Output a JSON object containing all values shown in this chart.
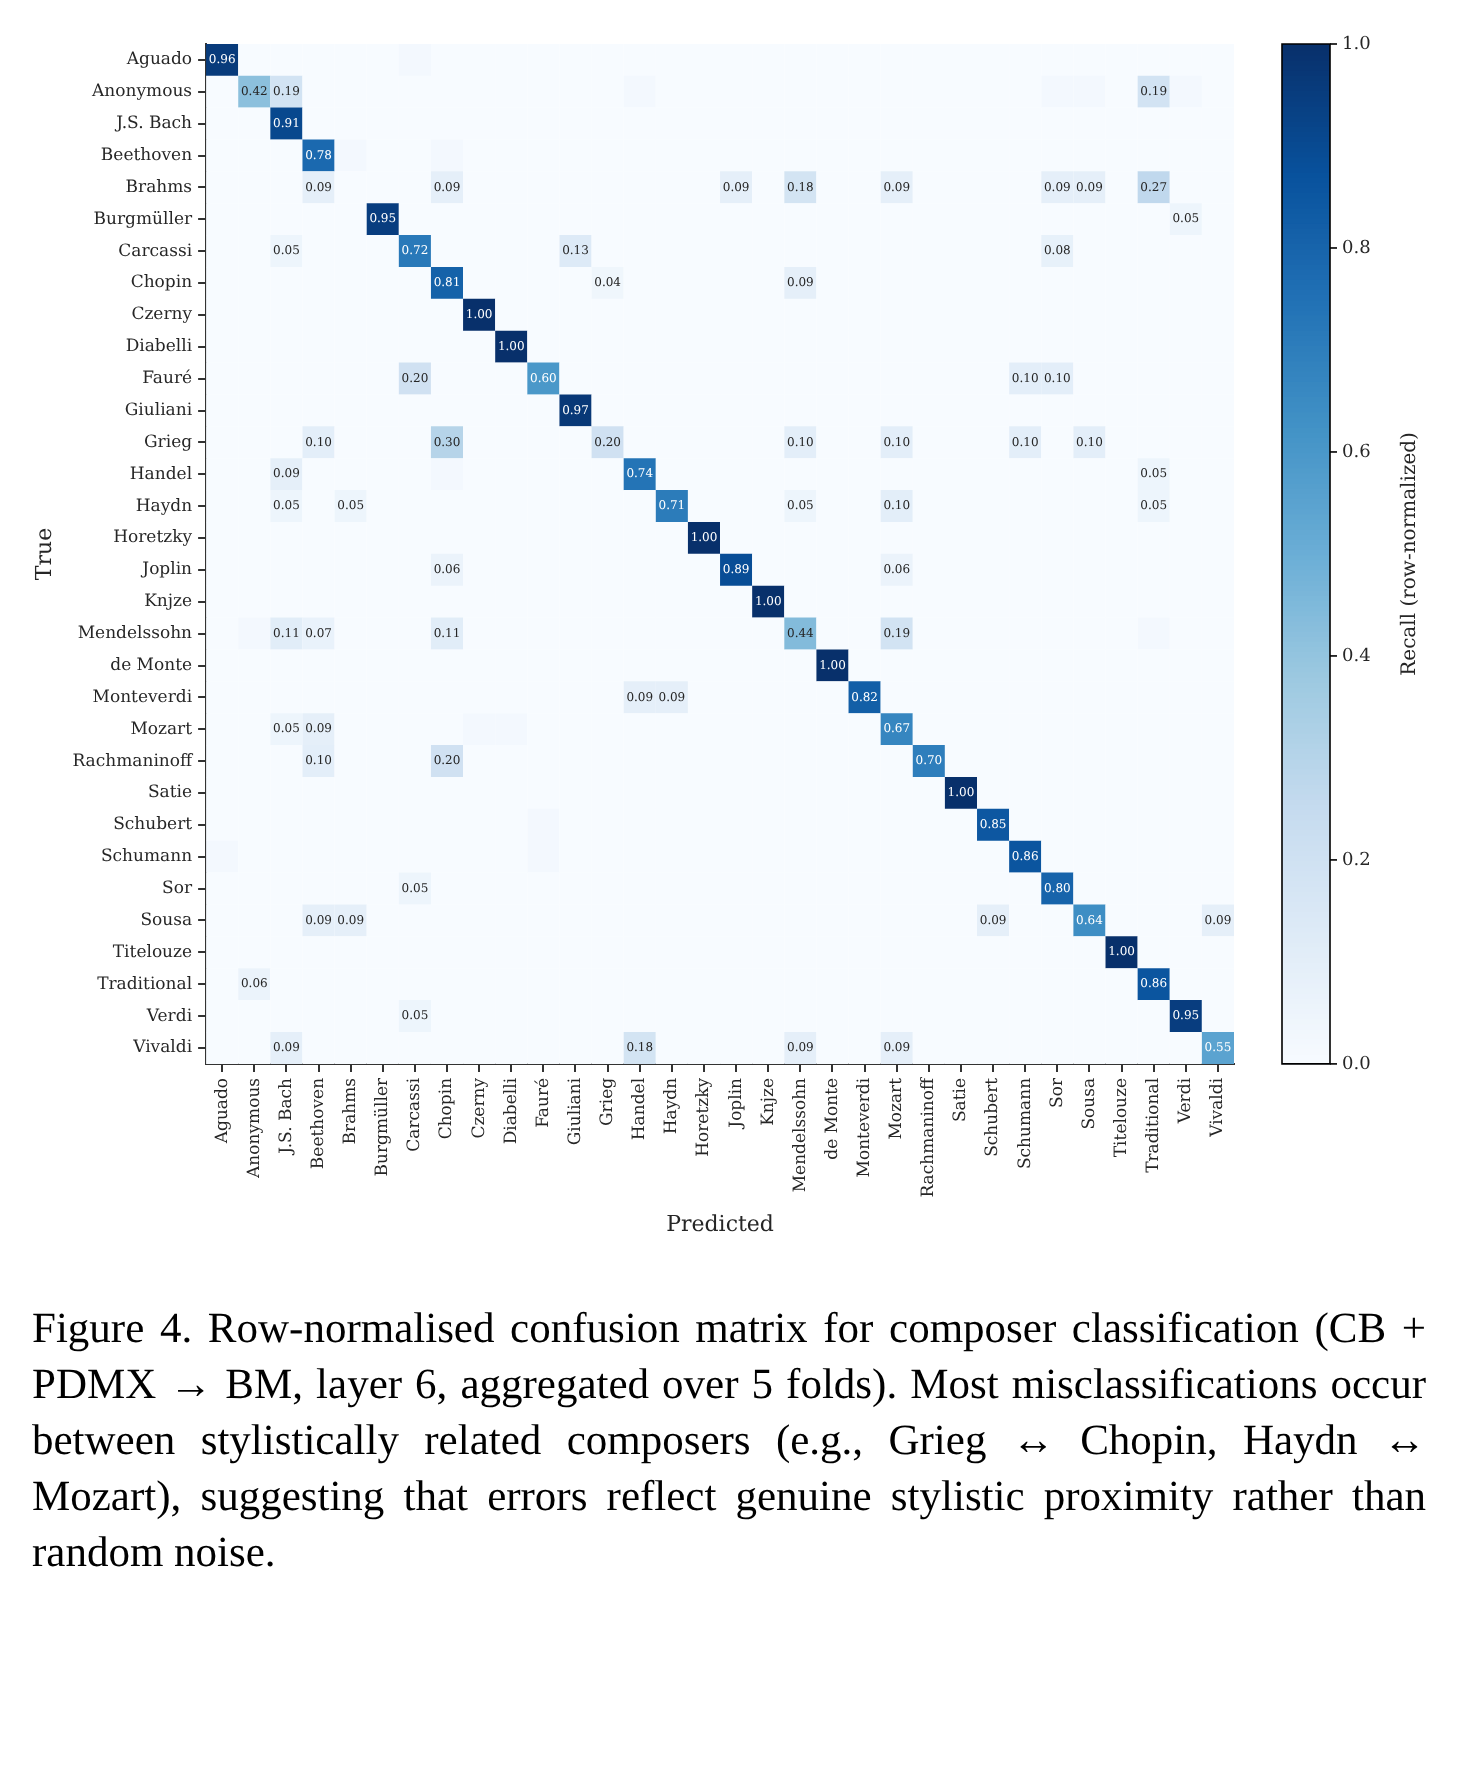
{
  "chart_data": {
    "type": "heatmap",
    "xlabel": "Predicted",
    "ylabel": "True",
    "clabel": "Recall (row-normalized)",
    "annotations": [
      "Figure 4.  Row-normalised confusion matrix for composer classification (CB + PDMX → BM, layer 6, aggregated over 5 folds). Most misclassifications occur between stylistically related composers (e.g., Grieg ↔ Chopin, Haydn ↔ Mozart), suggesting that errors reflect genuine stylistic proximity rather than random noise."
    ],
    "categories": [
      "Aguado",
      "Anonymous",
      "J.S. Bach",
      "Beethoven",
      "Brahms",
      "Burgmüller",
      "Carcassi",
      "Chopin",
      "Czerny",
      "Diabelli",
      "Fauré",
      "Giuliani",
      "Grieg",
      "Handel",
      "Haydn",
      "Horetzky",
      "Joplin",
      "Knjze",
      "Mendelssohn",
      "de Monte",
      "Monteverdi",
      "Mozart",
      "Rachmaninoff",
      "Satie",
      "Schubert",
      "Schumann",
      "Sor",
      "Sousa",
      "Titelouze",
      "Traditional",
      "Verdi",
      "Vivaldi"
    ],
    "y_categories": [
      "Aguado",
      "Anonymous",
      "J.S. Bach",
      "Beethoven",
      "Brahms",
      "Burgmüller",
      "Carcassi",
      "Chopin",
      "Czerny",
      "Diabelli",
      "Fauré",
      "Giuliani",
      "Grieg",
      "Handel",
      "Haydn",
      "Horetzky",
      "Joplin",
      "Knjze",
      "Mendelssohn",
      "de Monte",
      "Monteverdi",
      "Mozart",
      "Rachmaninoff",
      "Satie",
      "Schubert",
      "Schumann",
      "Sor",
      "Sousa",
      "Titelouze",
      "Traditional",
      "Verdi",
      "Vivaldi"
    ],
    "clim": [
      0,
      1
    ],
    "cticks": [
      {
        "value": 0,
        "label": "0.0"
      },
      {
        "value": 0.2,
        "label": "0.2"
      },
      {
        "value": 0.4,
        "label": "0.4"
      },
      {
        "value": 0.6,
        "label": "0.6"
      },
      {
        "value": 0.8,
        "label": "0.8"
      },
      {
        "value": 1,
        "label": "1.0"
      }
    ],
    "cells": [
      [
        0.96,
        0,
        0,
        0,
        0,
        0,
        0.02,
        0,
        0,
        0,
        0,
        0,
        0,
        0,
        0,
        0,
        0,
        0,
        0,
        0,
        0,
        0,
        0,
        0,
        0,
        0,
        0,
        0,
        0,
        0,
        0,
        0
      ],
      [
        0,
        0.42,
        0.19,
        0,
        0,
        0,
        0,
        0,
        0,
        0,
        0,
        0,
        0,
        0.02,
        0,
        0,
        0,
        0,
        0,
        0,
        0,
        0,
        0,
        0,
        0,
        0,
        0.02,
        0.02,
        0,
        0.19,
        0.02,
        0
      ],
      [
        0,
        0,
        0.91,
        0,
        0,
        0,
        0,
        0,
        0,
        0,
        0,
        0,
        0,
        0,
        0,
        0,
        0,
        0,
        0,
        0,
        0,
        0,
        0,
        0,
        0,
        0,
        0,
        0,
        0,
        0,
        0,
        0
      ],
      [
        0,
        0,
        0,
        0.78,
        0.02,
        0,
        0,
        0.02,
        0,
        0,
        0,
        0,
        0,
        0,
        0,
        0,
        0,
        0,
        0,
        0,
        0,
        0,
        0,
        0,
        0,
        0,
        0,
        0,
        0,
        0,
        0,
        0
      ],
      [
        0,
        0,
        0,
        0.09,
        0,
        0,
        0,
        0.09,
        0,
        0,
        0,
        0,
        0,
        0,
        0,
        0,
        0.09,
        0,
        0.18,
        0,
        0,
        0.09,
        0,
        0,
        0,
        0,
        0.09,
        0.09,
        0,
        0.27,
        0,
        0
      ],
      [
        0,
        0,
        0,
        0,
        0,
        0.95,
        0,
        0,
        0,
        0,
        0,
        0,
        0,
        0,
        0,
        0,
        0,
        0,
        0,
        0,
        0,
        0,
        0,
        0,
        0,
        0,
        0,
        0,
        0,
        0,
        0.05,
        0
      ],
      [
        0,
        0,
        0.05,
        0,
        0,
        0,
        0.72,
        0,
        0,
        0,
        0,
        0.13,
        0,
        0,
        0,
        0,
        0,
        0,
        0,
        0,
        0,
        0,
        0,
        0,
        0,
        0,
        0.08,
        0,
        0,
        0,
        0,
        0
      ],
      [
        0,
        0,
        0,
        0,
        0,
        0,
        0,
        0.81,
        0,
        0,
        0,
        0,
        0.04,
        0,
        0,
        0,
        0,
        0,
        0.09,
        0,
        0,
        0,
        0,
        0,
        0,
        0,
        0,
        0,
        0,
        0,
        0,
        0
      ],
      [
        0,
        0,
        0,
        0,
        0,
        0,
        0,
        0,
        1,
        0,
        0,
        0,
        0,
        0,
        0,
        0,
        0,
        0,
        0,
        0,
        0,
        0,
        0,
        0,
        0,
        0,
        0,
        0,
        0,
        0,
        0,
        0
      ],
      [
        0,
        0,
        0,
        0,
        0,
        0,
        0,
        0,
        0,
        1,
        0,
        0,
        0,
        0,
        0,
        0,
        0,
        0,
        0,
        0,
        0,
        0,
        0,
        0,
        0,
        0,
        0,
        0,
        0,
        0,
        0,
        0
      ],
      [
        0,
        0,
        0,
        0,
        0,
        0,
        0.2,
        0,
        0,
        0,
        0.6,
        0,
        0,
        0,
        0,
        0,
        0,
        0,
        0,
        0,
        0,
        0,
        0,
        0,
        0,
        0.1,
        0.1,
        0,
        0,
        0,
        0,
        0
      ],
      [
        0,
        0,
        0,
        0,
        0,
        0,
        0,
        0,
        0,
        0,
        0,
        0.97,
        0,
        0,
        0,
        0,
        0,
        0,
        0,
        0,
        0,
        0,
        0,
        0,
        0,
        0,
        0,
        0,
        0,
        0,
        0,
        0
      ],
      [
        0,
        0,
        0,
        0.1,
        0,
        0,
        0,
        0.3,
        0,
        0,
        0,
        0,
        0.2,
        0,
        0,
        0,
        0,
        0,
        0.1,
        0,
        0,
        0.1,
        0,
        0,
        0,
        0.1,
        0,
        0.1,
        0,
        0,
        0,
        0
      ],
      [
        0,
        0,
        0.09,
        0,
        0,
        0,
        0,
        0.02,
        0,
        0,
        0,
        0,
        0,
        0.74,
        0,
        0,
        0,
        0,
        0,
        0,
        0,
        0,
        0,
        0,
        0,
        0,
        0,
        0,
        0,
        0.05,
        0,
        0
      ],
      [
        0,
        0,
        0.05,
        0,
        0.05,
        0,
        0,
        0,
        0,
        0,
        0,
        0,
        0,
        0,
        0.71,
        0,
        0,
        0,
        0.05,
        0,
        0,
        0.1,
        0,
        0,
        0,
        0,
        0,
        0,
        0,
        0.05,
        0,
        0
      ],
      [
        0,
        0,
        0,
        0,
        0,
        0,
        0,
        0,
        0,
        0,
        0,
        0,
        0,
        0,
        0,
        1,
        0,
        0,
        0,
        0,
        0,
        0,
        0,
        0,
        0,
        0,
        0,
        0,
        0,
        0,
        0,
        0
      ],
      [
        0,
        0,
        0,
        0,
        0,
        0,
        0,
        0.06,
        0,
        0,
        0,
        0,
        0,
        0,
        0,
        0,
        0.89,
        0,
        0,
        0,
        0,
        0.06,
        0,
        0,
        0,
        0,
        0,
        0,
        0,
        0,
        0,
        0
      ],
      [
        0,
        0,
        0,
        0,
        0,
        0,
        0,
        0,
        0,
        0,
        0,
        0,
        0,
        0,
        0,
        0,
        0,
        1,
        0,
        0,
        0,
        0,
        0,
        0,
        0,
        0,
        0,
        0,
        0,
        0,
        0,
        0
      ],
      [
        0,
        0.02,
        0.11,
        0.07,
        0,
        0,
        0,
        0.11,
        0,
        0,
        0,
        0,
        0,
        0,
        0,
        0,
        0,
        0,
        0.44,
        0,
        0,
        0.19,
        0,
        0,
        0,
        0,
        0,
        0,
        0,
        0.02,
        0,
        0
      ],
      [
        0,
        0,
        0,
        0,
        0,
        0,
        0,
        0,
        0,
        0,
        0,
        0,
        0,
        0,
        0,
        0,
        0,
        0,
        0,
        1,
        0,
        0,
        0,
        0,
        0,
        0,
        0,
        0,
        0,
        0,
        0,
        0
      ],
      [
        0,
        0,
        0,
        0,
        0,
        0,
        0,
        0,
        0,
        0,
        0,
        0,
        0,
        0.09,
        0.09,
        0,
        0,
        0,
        0,
        0,
        0.82,
        0,
        0,
        0,
        0,
        0,
        0,
        0,
        0,
        0,
        0,
        0
      ],
      [
        0,
        0,
        0.05,
        0.09,
        0,
        0,
        0,
        0,
        0.02,
        0.02,
        0,
        0,
        0,
        0,
        0,
        0,
        0,
        0,
        0,
        0,
        0,
        0.67,
        0,
        0,
        0,
        0,
        0,
        0,
        0,
        0,
        0,
        0
      ],
      [
        0,
        0,
        0,
        0.1,
        0,
        0,
        0,
        0.2,
        0,
        0,
        0,
        0,
        0,
        0,
        0,
        0,
        0,
        0,
        0,
        0,
        0,
        0,
        0.7,
        0,
        0,
        0,
        0,
        0,
        0,
        0,
        0,
        0
      ],
      [
        0,
        0,
        0,
        0,
        0,
        0,
        0,
        0,
        0,
        0,
        0,
        0,
        0,
        0,
        0,
        0,
        0,
        0,
        0,
        0,
        0,
        0,
        0,
        1,
        0,
        0,
        0,
        0,
        0,
        0,
        0,
        0
      ],
      [
        0,
        0,
        0,
        0,
        0,
        0,
        0,
        0,
        0,
        0,
        0.02,
        0,
        0,
        0,
        0,
        0,
        0,
        0,
        0,
        0,
        0,
        0,
        0,
        0,
        0.85,
        0,
        0,
        0,
        0,
        0,
        0,
        0
      ],
      [
        0.02,
        0,
        0,
        0,
        0,
        0,
        0,
        0,
        0,
        0,
        0.02,
        0,
        0,
        0,
        0,
        0,
        0,
        0,
        0,
        0,
        0,
        0,
        0,
        0,
        0,
        0.86,
        0,
        0,
        0,
        0,
        0,
        0
      ],
      [
        0,
        0,
        0,
        0,
        0,
        0,
        0.05,
        0,
        0,
        0,
        0,
        0,
        0,
        0,
        0,
        0,
        0,
        0,
        0,
        0,
        0,
        0,
        0,
        0,
        0,
        0,
        0.8,
        0,
        0,
        0,
        0,
        0
      ],
      [
        0,
        0,
        0,
        0.09,
        0.09,
        0,
        0,
        0,
        0,
        0,
        0,
        0,
        0,
        0,
        0,
        0,
        0,
        0,
        0,
        0,
        0,
        0,
        0,
        0,
        0.09,
        0,
        0,
        0.64,
        0,
        0,
        0,
        0.09
      ],
      [
        0,
        0,
        0,
        0,
        0,
        0,
        0,
        0,
        0,
        0,
        0,
        0,
        0,
        0,
        0,
        0,
        0,
        0,
        0,
        0,
        0,
        0,
        0,
        0,
        0,
        0,
        0,
        0,
        1,
        0,
        0,
        0
      ],
      [
        0,
        0.06,
        0,
        0,
        0,
        0,
        0,
        0,
        0,
        0,
        0,
        0,
        0,
        0,
        0,
        0,
        0,
        0,
        0,
        0,
        0,
        0,
        0,
        0,
        0,
        0,
        0,
        0,
        0,
        0.86,
        0,
        0
      ],
      [
        0,
        0,
        0,
        0,
        0,
        0,
        0.05,
        0,
        0,
        0,
        0,
        0,
        0,
        0,
        0,
        0,
        0,
        0,
        0,
        0,
        0,
        0,
        0,
        0,
        0,
        0,
        0,
        0,
        0,
        0,
        0.95,
        0
      ],
      [
        0,
        0,
        0.09,
        0,
        0,
        0,
        0,
        0,
        0,
        0,
        0,
        0,
        0,
        0.18,
        0,
        0,
        0,
        0,
        0.09,
        0,
        0,
        0.09,
        0,
        0,
        0,
        0,
        0,
        0,
        0,
        0,
        0,
        0.55
      ]
    ],
    "cell_labels": [
      [
        "0.96",
        null,
        null,
        null,
        null,
        null,
        null,
        null,
        null,
        null,
        null,
        null,
        null,
        null,
        null,
        null,
        null,
        null,
        null,
        null,
        null,
        null,
        null,
        null,
        null,
        null,
        null,
        null,
        null,
        null,
        null,
        null
      ],
      [
        null,
        "0.42",
        "0.19",
        null,
        null,
        null,
        null,
        null,
        null,
        null,
        null,
        null,
        null,
        null,
        null,
        null,
        null,
        null,
        null,
        null,
        null,
        null,
        null,
        null,
        null,
        null,
        null,
        null,
        null,
        "0.19",
        null,
        null
      ],
      [
        null,
        null,
        "0.91",
        null,
        null,
        null,
        null,
        null,
        null,
        null,
        null,
        null,
        null,
        null,
        null,
        null,
        null,
        null,
        null,
        null,
        null,
        null,
        null,
        null,
        null,
        null,
        null,
        null,
        null,
        null,
        null,
        null
      ],
      [
        null,
        null,
        null,
        "0.78",
        null,
        null,
        null,
        null,
        null,
        null,
        null,
        null,
        null,
        null,
        null,
        null,
        null,
        null,
        null,
        null,
        null,
        null,
        null,
        null,
        null,
        null,
        null,
        null,
        null,
        null,
        null,
        null
      ],
      [
        null,
        null,
        null,
        "0.09",
        null,
        null,
        null,
        "0.09",
        null,
        null,
        null,
        null,
        null,
        null,
        null,
        null,
        "0.09",
        null,
        "0.18",
        null,
        null,
        "0.09",
        null,
        null,
        null,
        null,
        "0.09",
        "0.09",
        null,
        "0.27",
        null,
        null
      ],
      [
        null,
        null,
        null,
        null,
        null,
        "0.95",
        null,
        null,
        null,
        null,
        null,
        null,
        null,
        null,
        null,
        null,
        null,
        null,
        null,
        null,
        null,
        null,
        null,
        null,
        null,
        null,
        null,
        null,
        null,
        null,
        "0.05",
        null
      ],
      [
        null,
        null,
        "0.05",
        null,
        null,
        null,
        "0.72",
        null,
        null,
        null,
        null,
        "0.13",
        null,
        null,
        null,
        null,
        null,
        null,
        null,
        null,
        null,
        null,
        null,
        null,
        null,
        null,
        "0.08",
        null,
        null,
        null,
        null,
        null
      ],
      [
        null,
        null,
        null,
        null,
        null,
        null,
        null,
        "0.81",
        null,
        null,
        null,
        null,
        "0.04",
        null,
        null,
        null,
        null,
        null,
        "0.09",
        null,
        null,
        null,
        null,
        null,
        null,
        null,
        null,
        null,
        null,
        null,
        null,
        null
      ],
      [
        null,
        null,
        null,
        null,
        null,
        null,
        null,
        null,
        "1.00",
        null,
        null,
        null,
        null,
        null,
        null,
        null,
        null,
        null,
        null,
        null,
        null,
        null,
        null,
        null,
        null,
        null,
        null,
        null,
        null,
        null,
        null,
        null
      ],
      [
        null,
        null,
        null,
        null,
        null,
        null,
        null,
        null,
        null,
        "1.00",
        null,
        null,
        null,
        null,
        null,
        null,
        null,
        null,
        null,
        null,
        null,
        null,
        null,
        null,
        null,
        null,
        null,
        null,
        null,
        null,
        null,
        null
      ],
      [
        null,
        null,
        null,
        null,
        null,
        null,
        "0.20",
        null,
        null,
        null,
        "0.60",
        null,
        null,
        null,
        null,
        null,
        null,
        null,
        null,
        null,
        null,
        null,
        null,
        null,
        null,
        "0.10",
        "0.10",
        null,
        null,
        null,
        null,
        null
      ],
      [
        null,
        null,
        null,
        null,
        null,
        null,
        null,
        null,
        null,
        null,
        null,
        "0.97",
        null,
        null,
        null,
        null,
        null,
        null,
        null,
        null,
        null,
        null,
        null,
        null,
        null,
        null,
        null,
        null,
        null,
        null,
        null,
        null
      ],
      [
        null,
        null,
        null,
        "0.10",
        null,
        null,
        null,
        "0.30",
        null,
        null,
        null,
        null,
        "0.20",
        null,
        null,
        null,
        null,
        null,
        "0.10",
        null,
        null,
        "0.10",
        null,
        null,
        null,
        "0.10",
        null,
        "0.10",
        null,
        null,
        null,
        null
      ],
      [
        null,
        null,
        "0.09",
        null,
        null,
        null,
        null,
        null,
        null,
        null,
        null,
        null,
        null,
        "0.74",
        null,
        null,
        null,
        null,
        null,
        null,
        null,
        null,
        null,
        null,
        null,
        null,
        null,
        null,
        null,
        "0.05",
        null,
        null
      ],
      [
        null,
        null,
        "0.05",
        null,
        "0.05",
        null,
        null,
        null,
        null,
        null,
        null,
        null,
        null,
        null,
        "0.71",
        null,
        null,
        null,
        "0.05",
        null,
        null,
        "0.10",
        null,
        null,
        null,
        null,
        null,
        null,
        null,
        "0.05",
        null,
        null
      ],
      [
        null,
        null,
        null,
        null,
        null,
        null,
        null,
        null,
        null,
        null,
        null,
        null,
        null,
        null,
        null,
        "1.00",
        null,
        null,
        null,
        null,
        null,
        null,
        null,
        null,
        null,
        null,
        null,
        null,
        null,
        null,
        null,
        null
      ],
      [
        null,
        null,
        null,
        null,
        null,
        null,
        null,
        "0.06",
        null,
        null,
        null,
        null,
        null,
        null,
        null,
        null,
        "0.89",
        null,
        null,
        null,
        null,
        "0.06",
        null,
        null,
        null,
        null,
        null,
        null,
        null,
        null,
        null,
        null
      ],
      [
        null,
        null,
        null,
        null,
        null,
        null,
        null,
        null,
        null,
        null,
        null,
        null,
        null,
        null,
        null,
        null,
        null,
        "1.00",
        null,
        null,
        null,
        null,
        null,
        null,
        null,
        null,
        null,
        null,
        null,
        null,
        null,
        null
      ],
      [
        null,
        null,
        "0.11",
        "0.07",
        null,
        null,
        null,
        "0.11",
        null,
        null,
        null,
        null,
        null,
        null,
        null,
        null,
        null,
        null,
        "0.44",
        null,
        null,
        "0.19",
        null,
        null,
        null,
        null,
        null,
        null,
        null,
        null,
        null,
        null
      ],
      [
        null,
        null,
        null,
        null,
        null,
        null,
        null,
        null,
        null,
        null,
        null,
        null,
        null,
        null,
        null,
        null,
        null,
        null,
        null,
        "1.00",
        null,
        null,
        null,
        null,
        null,
        null,
        null,
        null,
        null,
        null,
        null,
        null
      ],
      [
        null,
        null,
        null,
        null,
        null,
        null,
        null,
        null,
        null,
        null,
        null,
        null,
        null,
        "0.09",
        "0.09",
        null,
        null,
        null,
        null,
        null,
        "0.82",
        null,
        null,
        null,
        null,
        null,
        null,
        null,
        null,
        null,
        null,
        null
      ],
      [
        null,
        null,
        "0.05",
        "0.09",
        null,
        null,
        null,
        null,
        null,
        null,
        null,
        null,
        null,
        null,
        null,
        null,
        null,
        null,
        null,
        null,
        null,
        "0.67",
        null,
        null,
        null,
        null,
        null,
        null,
        null,
        null,
        null,
        null
      ],
      [
        null,
        null,
        null,
        "0.10",
        null,
        null,
        null,
        "0.20",
        null,
        null,
        null,
        null,
        null,
        null,
        null,
        null,
        null,
        null,
        null,
        null,
        null,
        null,
        "0.70",
        null,
        null,
        null,
        null,
        null,
        null,
        null,
        null,
        null
      ],
      [
        null,
        null,
        null,
        null,
        null,
        null,
        null,
        null,
        null,
        null,
        null,
        null,
        null,
        null,
        null,
        null,
        null,
        null,
        null,
        null,
        null,
        null,
        null,
        "1.00",
        null,
        null,
        null,
        null,
        null,
        null,
        null,
        null
      ],
      [
        null,
        null,
        null,
        null,
        null,
        null,
        null,
        null,
        null,
        null,
        null,
        null,
        null,
        null,
        null,
        null,
        null,
        null,
        null,
        null,
        null,
        null,
        null,
        null,
        "0.85",
        null,
        null,
        null,
        null,
        null,
        null,
        null
      ],
      [
        null,
        null,
        null,
        null,
        null,
        null,
        null,
        null,
        null,
        null,
        null,
        null,
        null,
        null,
        null,
        null,
        null,
        null,
        null,
        null,
        null,
        null,
        null,
        null,
        null,
        "0.86",
        null,
        null,
        null,
        null,
        null,
        null
      ],
      [
        null,
        null,
        null,
        null,
        null,
        null,
        "0.05",
        null,
        null,
        null,
        null,
        null,
        null,
        null,
        null,
        null,
        null,
        null,
        null,
        null,
        null,
        null,
        null,
        null,
        null,
        null,
        "0.80",
        null,
        null,
        null,
        null,
        null
      ],
      [
        null,
        null,
        null,
        "0.09",
        "0.09",
        null,
        null,
        null,
        null,
        null,
        null,
        null,
        null,
        null,
        null,
        null,
        null,
        null,
        null,
        null,
        null,
        null,
        null,
        null,
        "0.09",
        null,
        null,
        "0.64",
        null,
        null,
        null,
        "0.09"
      ],
      [
        null,
        null,
        null,
        null,
        null,
        null,
        null,
        null,
        null,
        null,
        null,
        null,
        null,
        null,
        null,
        null,
        null,
        null,
        null,
        null,
        null,
        null,
        null,
        null,
        null,
        null,
        null,
        null,
        "1.00",
        null,
        null,
        null
      ],
      [
        null,
        "0.06",
        null,
        null,
        null,
        null,
        null,
        null,
        null,
        null,
        null,
        null,
        null,
        null,
        null,
        null,
        null,
        null,
        null,
        null,
        null,
        null,
        null,
        null,
        null,
        null,
        null,
        null,
        null,
        "0.86",
        null,
        null
      ],
      [
        null,
        null,
        null,
        null,
        null,
        null,
        "0.05",
        null,
        null,
        null,
        null,
        null,
        null,
        null,
        null,
        null,
        null,
        null,
        null,
        null,
        null,
        null,
        null,
        null,
        null,
        null,
        null,
        null,
        null,
        null,
        "0.95",
        null
      ],
      [
        null,
        null,
        "0.09",
        null,
        null,
        null,
        null,
        null,
        null,
        null,
        null,
        null,
        null,
        "0.18",
        null,
        null,
        null,
        null,
        "0.09",
        null,
        null,
        "0.09",
        null,
        null,
        null,
        null,
        null,
        null,
        null,
        null,
        null,
        "0.55"
      ]
    ]
  }
}
